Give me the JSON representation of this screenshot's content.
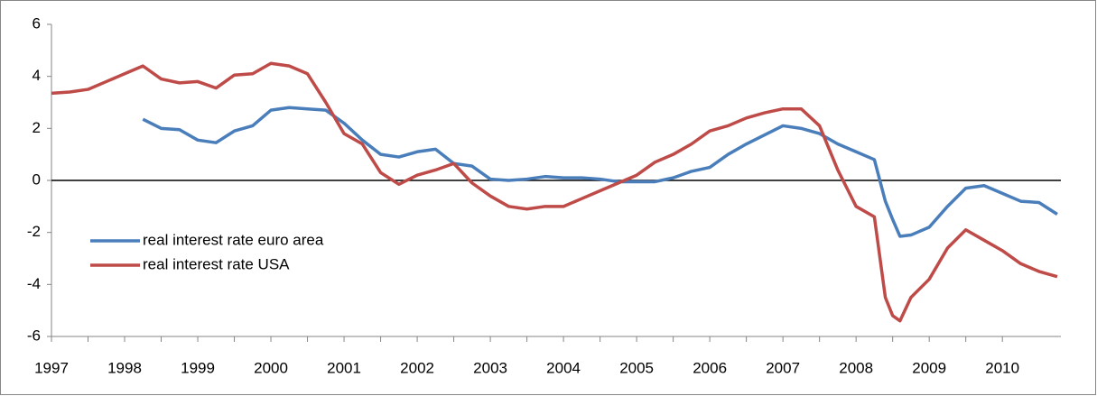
{
  "chart_data": {
    "type": "line",
    "x": [
      1997,
      1997.25,
      1997.5,
      1997.75,
      1998,
      1998.25,
      1998.5,
      1998.75,
      1999,
      1999.25,
      1999.5,
      1999.75,
      2000,
      2000.25,
      2000.5,
      2000.75,
      2001,
      2001.25,
      2001.5,
      2001.75,
      2002,
      2002.25,
      2002.5,
      2002.75,
      2003,
      2003.25,
      2003.5,
      2003.75,
      2004,
      2004.25,
      2004.5,
      2004.75,
      2005,
      2005.25,
      2005.5,
      2005.75,
      2006,
      2006.25,
      2006.5,
      2006.75,
      2007,
      2007.25,
      2007.5,
      2007.75,
      2008,
      2008.25,
      2008.4,
      2008.5,
      2008.6,
      2008.75,
      2009,
      2009.25,
      2009.5,
      2009.75,
      2010,
      2010.25,
      2010.5,
      2010.75
    ],
    "series": [
      {
        "name": "real interest rate euro area",
        "color": "#4a7ebb",
        "values": [
          null,
          null,
          null,
          null,
          null,
          2.35,
          2.0,
          1.95,
          1.55,
          1.45,
          1.9,
          2.1,
          2.7,
          2.8,
          2.75,
          2.7,
          2.2,
          1.55,
          1.0,
          0.9,
          1.1,
          1.2,
          0.65,
          0.55,
          0.05,
          0.0,
          0.05,
          0.15,
          0.1,
          0.1,
          0.05,
          -0.05,
          -0.05,
          -0.05,
          0.1,
          0.35,
          0.5,
          1.0,
          1.4,
          1.75,
          2.1,
          2.0,
          1.8,
          1.4,
          1.1,
          0.8,
          -0.8,
          -1.5,
          -2.15,
          -2.1,
          -1.8,
          -1.0,
          -0.3,
          -0.2,
          -0.5,
          -0.8,
          -0.85,
          -1.3
        ]
      },
      {
        "name": "real interest rate USA",
        "color": "#be4b48",
        "values": [
          3.35,
          3.4,
          3.5,
          3.8,
          4.1,
          4.4,
          3.9,
          3.75,
          3.8,
          3.55,
          4.05,
          4.1,
          4.5,
          4.4,
          4.1,
          3.0,
          1.8,
          1.4,
          0.3,
          -0.15,
          0.2,
          0.4,
          0.65,
          -0.1,
          -0.6,
          -1.0,
          -1.1,
          -1.0,
          -1.0,
          -0.7,
          -0.4,
          -0.1,
          0.2,
          0.7,
          1.0,
          1.4,
          1.9,
          2.1,
          2.4,
          2.6,
          2.75,
          2.75,
          2.1,
          0.4,
          -1.0,
          -1.4,
          -4.5,
          -5.2,
          -5.4,
          -4.5,
          -3.8,
          -2.6,
          -1.9,
          -2.3,
          -2.7,
          -3.2,
          -3.5,
          -3.7
        ]
      }
    ],
    "xlim": [
      1997,
      2010.8
    ],
    "xticks": [
      1997,
      1998,
      1999,
      2000,
      2001,
      2002,
      2003,
      2004,
      2005,
      2006,
      2007,
      2008,
      2009,
      2010
    ],
    "ylim": [
      -6,
      6
    ],
    "yticks": [
      -6,
      -4,
      -2,
      0,
      2,
      4,
      6
    ],
    "zero_line": true,
    "legend": "left"
  }
}
